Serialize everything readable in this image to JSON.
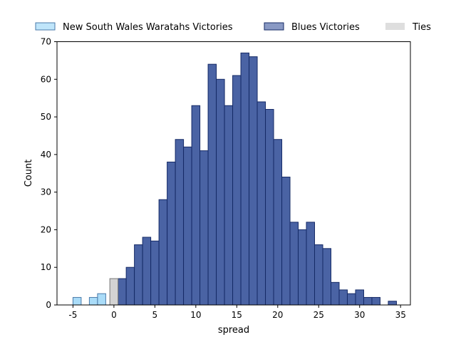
{
  "chart_data": {
    "type": "bar",
    "xlabel": "spread",
    "ylabel": "Count",
    "xlim": [
      -6.95,
      36.2
    ],
    "ylim": [
      0,
      70
    ],
    "xticks": [
      -5,
      0,
      5,
      10,
      15,
      20,
      25,
      30,
      35
    ],
    "yticks": [
      0,
      10,
      20,
      30,
      40,
      50,
      60,
      70
    ],
    "bin_width": 1,
    "legend_position": "top",
    "series": [
      {
        "name": "New South Wales Waratahs Victories",
        "fill": "#aadcf8",
        "edge": "#4a7aaa",
        "bins": [
          {
            "x0": -5,
            "count": 2
          },
          {
            "x0": -3,
            "count": 2
          },
          {
            "x0": -2,
            "count": 3
          }
        ]
      },
      {
        "name": "Blues Victories",
        "fill": "#4a63a4",
        "edge": "#152a66",
        "bins": [
          {
            "x0": 0.5,
            "count": 7
          },
          {
            "x0": 1.5,
            "count": 10
          },
          {
            "x0": 2.5,
            "count": 16
          },
          {
            "x0": 3.5,
            "count": 18
          },
          {
            "x0": 4.5,
            "count": 17
          },
          {
            "x0": 5.5,
            "count": 28
          },
          {
            "x0": 6.5,
            "count": 38
          },
          {
            "x0": 7.5,
            "count": 44
          },
          {
            "x0": 8.5,
            "count": 42
          },
          {
            "x0": 9.5,
            "count": 53
          },
          {
            "x0": 10.5,
            "count": 41
          },
          {
            "x0": 11.5,
            "count": 64
          },
          {
            "x0": 12.5,
            "count": 60
          },
          {
            "x0": 13.5,
            "count": 53
          },
          {
            "x0": 14.5,
            "count": 61
          },
          {
            "x0": 15.5,
            "count": 67
          },
          {
            "x0": 16.5,
            "count": 66
          },
          {
            "x0": 17.5,
            "count": 54
          },
          {
            "x0": 18.5,
            "count": 52
          },
          {
            "x0": 19.5,
            "count": 44
          },
          {
            "x0": 20.5,
            "count": 34
          },
          {
            "x0": 21.5,
            "count": 22
          },
          {
            "x0": 22.5,
            "count": 20
          },
          {
            "x0": 23.5,
            "count": 22
          },
          {
            "x0": 24.5,
            "count": 16
          },
          {
            "x0": 25.5,
            "count": 15
          },
          {
            "x0": 26.5,
            "count": 6
          },
          {
            "x0": 27.5,
            "count": 4
          },
          {
            "x0": 28.5,
            "count": 3
          },
          {
            "x0": 29.5,
            "count": 4
          },
          {
            "x0": 30.5,
            "count": 2
          },
          {
            "x0": 31.5,
            "count": 2
          },
          {
            "x0": 33.5,
            "count": 1
          }
        ]
      },
      {
        "name": "Ties",
        "fill": "#d3d3d3",
        "edge": "#777777",
        "bins": [
          {
            "x0": -0.5,
            "count": 7
          }
        ]
      }
    ]
  }
}
